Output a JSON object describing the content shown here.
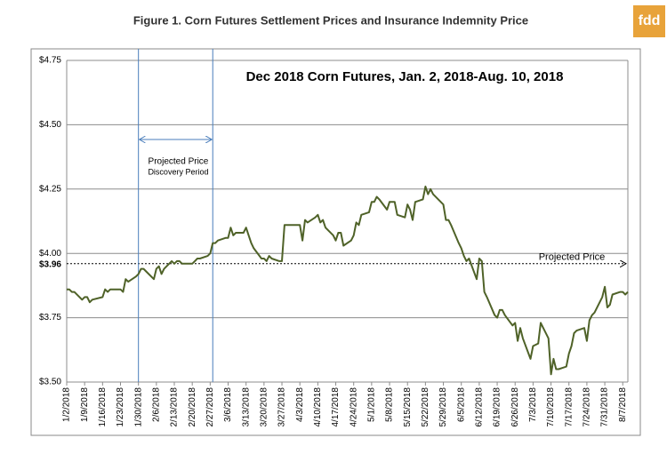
{
  "chart_data": {
    "type": "line",
    "title": "Figure 1.  Corn Futures Settlement Prices and Insurance Indemnity Price",
    "subtitle": "Dec 2018 Corn Futures, Jan. 2, 2018-Aug. 10, 2018",
    "x": [
      "1/2/2018",
      "1/3/2018",
      "1/4/2018",
      "1/5/2018",
      "1/8/2018",
      "1/9/2018",
      "1/10/2018",
      "1/11/2018",
      "1/12/2018",
      "1/16/2018",
      "1/17/2018",
      "1/18/2018",
      "1/19/2018",
      "1/22/2018",
      "1/23/2018",
      "1/24/2018",
      "1/25/2018",
      "1/26/2018",
      "1/29/2018",
      "1/30/2018",
      "1/31/2018",
      "2/1/2018",
      "2/2/2018",
      "2/5/2018",
      "2/6/2018",
      "2/7/2018",
      "2/8/2018",
      "2/9/2018",
      "2/12/2018",
      "2/13/2018",
      "2/14/2018",
      "2/15/2018",
      "2/16/2018",
      "2/20/2018",
      "2/21/2018",
      "2/22/2018",
      "2/23/2018",
      "2/26/2018",
      "2/27/2018",
      "2/28/2018",
      "3/1/2018",
      "3/2/2018",
      "3/5/2018",
      "3/6/2018",
      "3/7/2018",
      "3/8/2018",
      "3/9/2018",
      "3/12/2018",
      "3/13/2018",
      "3/14/2018",
      "3/15/2018",
      "3/16/2018",
      "3/19/2018",
      "3/20/2018",
      "3/21/2018",
      "3/22/2018",
      "3/23/2018",
      "3/26/2018",
      "3/27/2018",
      "3/28/2018",
      "3/29/2018",
      "4/2/2018",
      "4/3/2018",
      "4/4/2018",
      "4/5/2018",
      "4/6/2018",
      "4/9/2018",
      "4/10/2018",
      "4/11/2018",
      "4/12/2018",
      "4/13/2018",
      "4/16/2018",
      "4/17/2018",
      "4/18/2018",
      "4/19/2018",
      "4/20/2018",
      "4/23/2018",
      "4/24/2018",
      "4/25/2018",
      "4/26/2018",
      "4/27/2018",
      "4/30/2018",
      "5/1/2018",
      "5/2/2018",
      "5/3/2018",
      "5/4/2018",
      "5/7/2018",
      "5/8/2018",
      "5/9/2018",
      "5/10/2018",
      "5/11/2018",
      "5/14/2018",
      "5/15/2018",
      "5/16/2018",
      "5/17/2018",
      "5/18/2018",
      "5/21/2018",
      "5/22/2018",
      "5/23/2018",
      "5/24/2018",
      "5/25/2018",
      "5/29/2018",
      "5/30/2018",
      "5/31/2018",
      "6/1/2018",
      "6/4/2018",
      "6/5/2018",
      "6/6/2018",
      "6/7/2018",
      "6/8/2018",
      "6/11/2018",
      "6/12/2018",
      "6/13/2018",
      "6/14/2018",
      "6/15/2018",
      "6/18/2018",
      "6/19/2018",
      "6/20/2018",
      "6/21/2018",
      "6/22/2018",
      "6/25/2018",
      "6/26/2018",
      "6/27/2018",
      "6/28/2018",
      "6/29/2018",
      "7/2/2018",
      "7/3/2018",
      "7/5/2018",
      "7/6/2018",
      "7/9/2018",
      "7/10/2018",
      "7/11/2018",
      "7/12/2018",
      "7/13/2018",
      "7/16/2018",
      "7/17/2018",
      "7/18/2018",
      "7/19/2018",
      "7/20/2018",
      "7/23/2018",
      "7/24/2018",
      "7/25/2018",
      "7/26/2018",
      "7/27/2018",
      "7/30/2018",
      "7/31/2018",
      "8/1/2018",
      "8/2/2018",
      "8/3/2018",
      "8/6/2018",
      "8/7/2018",
      "8/8/2018",
      "8/9/2018"
    ],
    "series": [
      {
        "color": "#4f6228",
        "values": [
          3.86,
          3.86,
          3.85,
          3.85,
          3.82,
          3.83,
          3.83,
          3.81,
          3.82,
          3.83,
          3.86,
          3.85,
          3.86,
          3.86,
          3.86,
          3.85,
          3.9,
          3.89,
          3.91,
          3.92,
          3.94,
          3.94,
          3.93,
          3.9,
          3.94,
          3.95,
          3.92,
          3.94,
          3.97,
          3.96,
          3.97,
          3.97,
          3.96,
          3.96,
          3.97,
          3.98,
          3.98,
          3.99,
          4.0,
          4.04,
          4.04,
          4.05,
          4.06,
          4.06,
          4.1,
          4.07,
          4.08,
          4.08,
          4.1,
          4.07,
          4.04,
          4.02,
          3.98,
          3.98,
          3.97,
          3.99,
          3.98,
          3.97,
          3.97,
          4.11,
          4.11,
          4.11,
          4.11,
          4.05,
          4.13,
          4.12,
          4.14,
          4.15,
          4.12,
          4.13,
          4.1,
          4.07,
          4.05,
          4.08,
          4.08,
          4.03,
          4.05,
          4.07,
          4.12,
          4.11,
          4.15,
          4.16,
          4.2,
          4.2,
          4.22,
          4.21,
          4.17,
          4.2,
          4.2,
          4.2,
          4.15,
          4.14,
          4.19,
          4.17,
          4.13,
          4.2,
          4.21,
          4.26,
          4.23,
          4.25,
          4.23,
          4.19,
          4.13,
          4.13,
          4.11,
          4.04,
          4.02,
          3.99,
          3.97,
          3.98,
          3.9,
          3.98,
          3.97,
          3.85,
          3.83,
          3.76,
          3.75,
          3.78,
          3.78,
          3.76,
          3.72,
          3.73,
          3.66,
          3.71,
          3.67,
          3.59,
          3.64,
          3.65,
          3.73,
          3.67,
          3.53,
          3.59,
          3.55,
          3.55,
          3.56,
          3.61,
          3.64,
          3.69,
          3.7,
          3.71,
          3.66,
          3.74,
          3.76,
          3.77,
          3.83,
          3.87,
          3.79,
          3.8,
          3.84,
          3.85,
          3.85,
          3.84,
          3.85
        ]
      }
    ],
    "xlim": [
      "1/2/2018",
      "8/9/2018"
    ],
    "xticks": [
      "1/2/2018",
      "1/9/2018",
      "1/16/2018",
      "1/23/2018",
      "1/30/2018",
      "2/6/2018",
      "2/13/2018",
      "2/20/2018",
      "2/27/2018",
      "3/6/2018",
      "3/13/2018",
      "3/20/2018",
      "3/27/2018",
      "4/3/2018",
      "4/10/2018",
      "4/17/2018",
      "4/24/2018",
      "5/1/2018",
      "5/8/2018",
      "5/15/2018",
      "5/22/2018",
      "5/29/2018",
      "6/5/2018",
      "6/12/2018",
      "6/19/2018",
      "6/26/2018",
      "7/3/2018",
      "7/10/2018",
      "7/17/2018",
      "7/24/2018",
      "7/31/2018",
      "8/7/2018"
    ],
    "ylim": [
      3.5,
      4.75
    ],
    "yticks": [
      {
        "value": 3.5,
        "label": "$3.50"
      },
      {
        "value": 3.75,
        "label": "$3.75"
      },
      {
        "value": 4.0,
        "label": "$4.00"
      },
      {
        "value": 4.25,
        "label": "$4.25"
      },
      {
        "value": 4.5,
        "label": "$4.50"
      },
      {
        "value": 4.75,
        "label": "$4.75"
      }
    ],
    "grid": true,
    "projected_price": {
      "value": 3.96,
      "label": "$3.96",
      "text": "Projected Price"
    },
    "discovery_period": {
      "start": "1/30/2018",
      "end": "2/28/2018",
      "line1": "Projected Price",
      "line2": "Discovery Period"
    }
  },
  "logo": "fdd"
}
